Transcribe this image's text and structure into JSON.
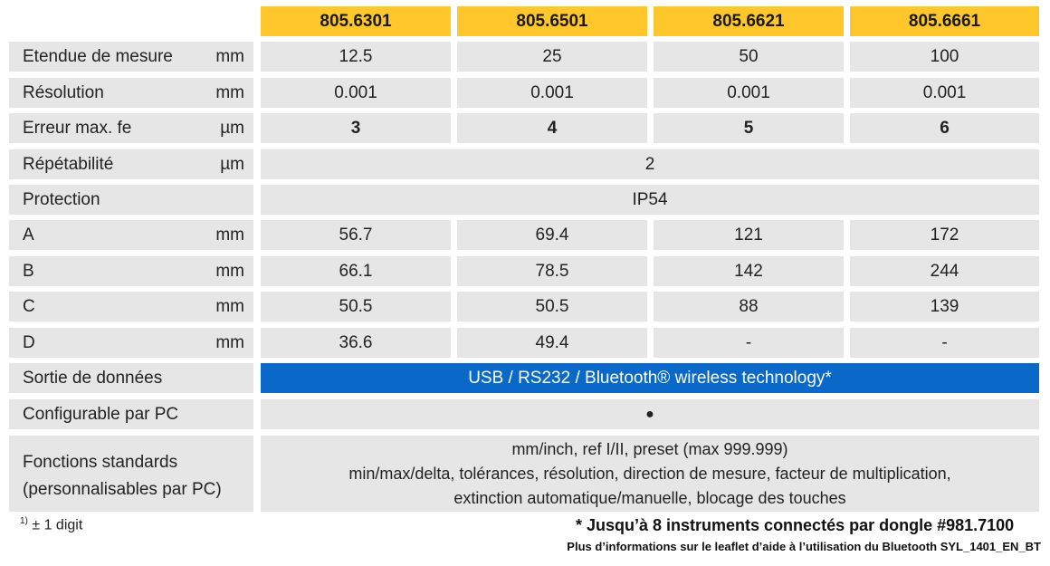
{
  "models": [
    "805.6301",
    "805.6501",
    "805.6621",
    "805.6661"
  ],
  "rows": [
    {
      "label": "Etendue de mesure",
      "unit": "mm",
      "values": [
        "12.5",
        "25",
        "50",
        "100"
      ]
    },
    {
      "label": "Résolution",
      "unit": "mm",
      "values": [
        "0.001",
        "0.001",
        "0.001",
        "0.001"
      ]
    },
    {
      "label": "Erreur max. fe",
      "unit": "µm",
      "values": [
        "3",
        "4",
        "5",
        "6"
      ]
    },
    {
      "label": "Répétabilité",
      "unit": "µm",
      "value": "2"
    },
    {
      "label": "Protection",
      "unit": "",
      "value": "IP54"
    },
    {
      "label": "A",
      "unit": "mm",
      "values": [
        "56.7",
        "69.4",
        "121",
        "172"
      ]
    },
    {
      "label": "B",
      "unit": "mm",
      "values": [
        "66.1",
        "78.5",
        "142",
        "244"
      ]
    },
    {
      "label": "C",
      "unit": "mm",
      "values": [
        "50.5",
        "50.5",
        "88",
        "139"
      ]
    },
    {
      "label": "D",
      "unit": "mm",
      "values": [
        "36.6",
        "49.4",
        "-",
        "-"
      ]
    },
    {
      "label": "Sortie de données",
      "unit": "",
      "value": "USB / RS232 / Bluetooth® wireless technology*"
    },
    {
      "label": "Configurable par PC",
      "unit": "",
      "value": "●"
    },
    {
      "label_lines": [
        "Fonctions standards",
        "(personnalisables par PC)"
      ],
      "unit": "",
      "value_lines": [
        "mm/inch, ref I/II, preset (max 999.999)",
        "min/max/delta, tolérances, résolution, direction de mesure, facteur de multiplication,",
        "extinction automatique/manuelle, blocage des touches"
      ]
    }
  ],
  "footnotes": {
    "digit_sup": "1)",
    "digit": "± 1 digit",
    "dongle": "* Jusqu’à 8 instruments connectés par dongle #981.7100",
    "leaflet": "Plus d’informations sur le leaflet d’aide à l’utilisation du Bluetooth SYL_1401_EN_BT"
  },
  "colors": {
    "header": "#ffc72c",
    "cell": "#e6e6e6",
    "data_output": "#0a69c8"
  }
}
